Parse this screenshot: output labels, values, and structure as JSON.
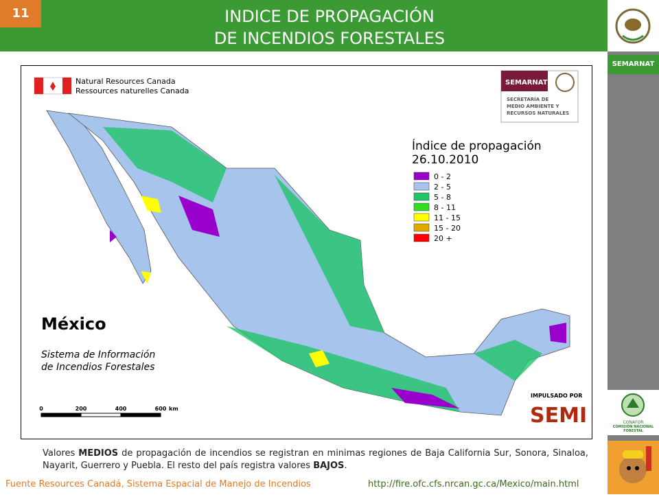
{
  "slide_number": "11",
  "header": {
    "title_line1": "INDICE DE PROPAGACIÓN",
    "title_line2": "DE INCENDIOS FORESTALES"
  },
  "sidebar": {
    "semarnat": "SEMARNAT",
    "conafor": "CONAFOR",
    "conafor_full": "COMISIÓN NACIONAL FORESTAL"
  },
  "map": {
    "nrcan_en": "Natural Resources Canada",
    "nrcan_fr": "Ressources naturelles Canada",
    "semarnat_logo": "SEMARNAT",
    "semarnat_lines": [
      "SECRETARÍA DE",
      "MEDIO AMBIENTE Y",
      "RECURSOS NATURALES"
    ],
    "legend": {
      "title": "Índice de propagación",
      "date": "26.10.2010",
      "items": [
        {
          "label": "0 - 2",
          "color": "#9900cc"
        },
        {
          "label": "2 - 5",
          "color": "#a6c4ec"
        },
        {
          "label": "5 - 8",
          "color": "#22c46a"
        },
        {
          "label": "8 - 11",
          "color": "#33dd22"
        },
        {
          "label": "11 - 15",
          "color": "#ffff00"
        },
        {
          "label": "15 - 20",
          "color": "#ddaa00"
        },
        {
          "label": "20 +",
          "color": "#ff0000"
        }
      ]
    },
    "country": "México",
    "system_lines": [
      "Sistema de Información",
      "de Incendios Forestales"
    ],
    "scale": {
      "labels": [
        "0",
        "200",
        "400",
        "600"
      ],
      "unit": "km"
    },
    "impulsado": "IMPULSADO POR",
    "semi": "SEMI"
  },
  "caption": {
    "segments": [
      {
        "text": "Valores ",
        "bold": false
      },
      {
        "text": "MEDIOS",
        "bold": true
      },
      {
        "text": " de propagación de incendios  se registran en minimas regiones de Baja California Sur, Sonora, Sinaloa, Nayarit, Guerrero y Puebla. El resto del país  registra  valores ",
        "bold": false
      },
      {
        "text": "BAJOS",
        "bold": true
      },
      {
        "text": ".",
        "bold": false
      }
    ]
  },
  "footer": {
    "source": "Fuente Resources Canadá, Sistema Espacial de Manejo de Incendios",
    "url": "http://fire.ofc.cfs.nrcan.gc.ca/Mexico/main.html"
  }
}
